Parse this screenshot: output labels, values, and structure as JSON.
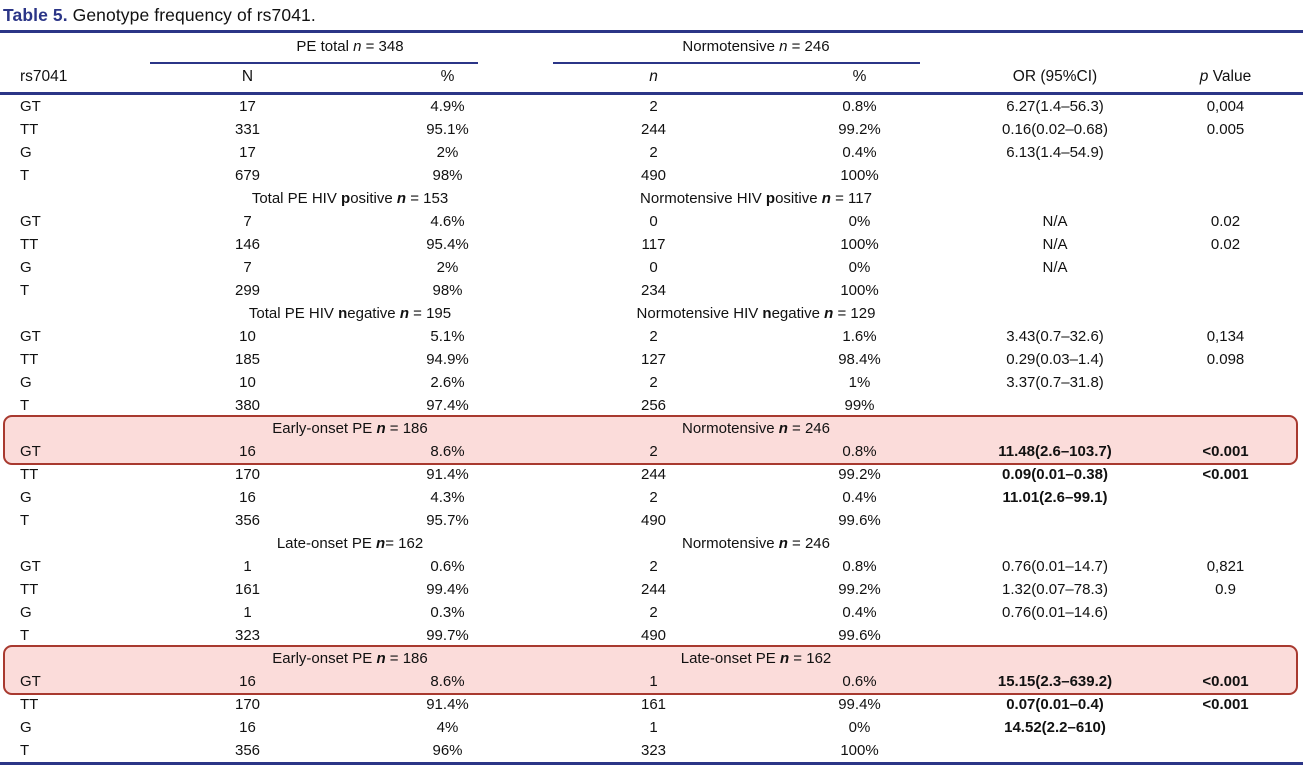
{
  "colors": {
    "navy": "#2b3587",
    "highlight_bg": "#fbdcda",
    "highlight_border": "#a8392f"
  },
  "table": {
    "title_parts": [
      {
        "text": "Table 5.",
        "bold": true,
        "accent": true
      },
      {
        "text": " Genotype frequency of rs7041."
      }
    ],
    "header": {
      "row_label": "rs7041",
      "groups": [
        {
          "parts": [
            {
              "text": "PE total "
            },
            {
              "text": "n",
              "italic": true
            },
            {
              "text": " = 348"
            }
          ]
        },
        {
          "parts": [
            {
              "text": "Normotensive "
            },
            {
              "text": "n",
              "italic": true
            },
            {
              "text": " = 246"
            }
          ]
        }
      ],
      "columns": [
        {
          "name": "col-n-pe",
          "parts": [
            {
              "text": "N"
            }
          ]
        },
        {
          "name": "col-pct-pe",
          "parts": [
            {
              "text": "%"
            }
          ]
        },
        {
          "name": "col-n-control",
          "parts": [
            {
              "text": "n",
              "italic": true
            }
          ]
        },
        {
          "name": "col-pct-control",
          "parts": [
            {
              "text": "%"
            }
          ]
        },
        {
          "name": "col-or",
          "parts": [
            {
              "text": "OR (95%CI)"
            }
          ]
        },
        {
          "name": "col-p-value",
          "parts": [
            {
              "text": "p",
              "italic": true
            },
            {
              "text": " Value"
            }
          ]
        }
      ]
    },
    "blocks": [
      {
        "rows": [
          {
            "cells": [
              "GT",
              "17",
              "4.9%",
              "2",
              "0.8%",
              "6.27(1.4–56.3)",
              "0,004"
            ]
          },
          {
            "cells": [
              "TT",
              "331",
              "95.1%",
              "244",
              "99.2%",
              "0.16(0.02–0.68)",
              "0.005"
            ]
          },
          {
            "cells": [
              "G",
              "17",
              "2%",
              "2",
              "0.4%",
              "6.13(1.4–54.9)",
              ""
            ]
          },
          {
            "cells": [
              "T",
              "679",
              "98%",
              "490",
              "100%",
              "",
              ""
            ]
          }
        ]
      },
      {
        "subheader": {
          "left": [
            {
              "text": "Total PE HIV "
            },
            {
              "text": "p",
              "bold": true
            },
            {
              "text": "ositive "
            },
            {
              "text": "n",
              "bold": true,
              "italic": true
            },
            {
              "text": " = 153"
            }
          ],
          "right": [
            {
              "text": "Normotensive HIV "
            },
            {
              "text": "p",
              "bold": true
            },
            {
              "text": "ositive "
            },
            {
              "text": "n",
              "bold": true,
              "italic": true
            },
            {
              "text": " = 117"
            }
          ]
        },
        "rows": [
          {
            "cells": [
              "GT",
              "7",
              "4.6%",
              "0",
              "0%",
              "N/A",
              "0.02"
            ]
          },
          {
            "cells": [
              "TT",
              "146",
              "95.4%",
              "117",
              "100%",
              "N/A",
              "0.02"
            ]
          },
          {
            "cells": [
              "G",
              "7",
              "2%",
              "0",
              "0%",
              "N/A",
              ""
            ]
          },
          {
            "cells": [
              "T",
              "299",
              "98%",
              "234",
              "100%",
              "",
              ""
            ]
          }
        ]
      },
      {
        "subheader": {
          "left": [
            {
              "text": "Total PE HIV "
            },
            {
              "text": "n",
              "bold": true
            },
            {
              "text": "egative "
            },
            {
              "text": "n",
              "bold": true,
              "italic": true
            },
            {
              "text": " = 195"
            }
          ],
          "right": [
            {
              "text": "Normotensive HIV "
            },
            {
              "text": "n",
              "bold": true
            },
            {
              "text": "egative "
            },
            {
              "text": "n",
              "bold": true,
              "italic": true
            },
            {
              "text": " = 129"
            }
          ]
        },
        "rows": [
          {
            "cells": [
              "GT",
              "10",
              "5.1%",
              "2",
              "1.6%",
              "3.43(0.7–32.6)",
              "0,134"
            ]
          },
          {
            "cells": [
              "TT",
              "185",
              "94.9%",
              "127",
              "98.4%",
              "0.29(0.03–1.4)",
              "0.098"
            ]
          },
          {
            "cells": [
              "G",
              "10",
              "2.6%",
              "2",
              "1%",
              "3.37(0.7–31.8)",
              ""
            ]
          },
          {
            "cells": [
              "T",
              "380",
              "97.4%",
              "256",
              "99%",
              "",
              ""
            ]
          }
        ]
      },
      {
        "highlight_first": true,
        "subheader": {
          "left": [
            {
              "text": "Early-onset PE "
            },
            {
              "text": "n",
              "bold": true,
              "italic": true
            },
            {
              "text": " = 186"
            }
          ],
          "right": [
            {
              "text": "Normotensive "
            },
            {
              "text": "n",
              "bold": true,
              "italic": true
            },
            {
              "text": " = 246"
            }
          ]
        },
        "rows": [
          {
            "cells": [
              "GT",
              "16",
              "8.6%",
              "2",
              "0.8%",
              "11.48(2.6–103.7)",
              "<0.001"
            ],
            "emphasis": true
          },
          {
            "cells": [
              "TT",
              "170",
              "91.4%",
              "244",
              "99.2%",
              "0.09(0.01–0.38)",
              "<0.001"
            ],
            "emphasis": true
          },
          {
            "cells": [
              "G",
              "16",
              "4.3%",
              "2",
              "0.4%",
              "11.01(2.6–99.1)",
              ""
            ],
            "emphasis": true
          },
          {
            "cells": [
              "T",
              "356",
              "95.7%",
              "490",
              "99.6%",
              "",
              ""
            ]
          }
        ]
      },
      {
        "subheader": {
          "left": [
            {
              "text": "Late-onset PE "
            },
            {
              "text": "n",
              "bold": true,
              "italic": true
            },
            {
              "text": "= 162"
            }
          ],
          "right": [
            {
              "text": "Normotensive "
            },
            {
              "text": "n",
              "bold": true,
              "italic": true
            },
            {
              "text": " = 246"
            }
          ]
        },
        "rows": [
          {
            "cells": [
              "GT",
              "1",
              "0.6%",
              "2",
              "0.8%",
              "0.76(0.01–14.7)",
              "0,821"
            ]
          },
          {
            "cells": [
              "TT",
              "161",
              "99.4%",
              "244",
              "99.2%",
              "1.32(0.07–78.3)",
              "0.9"
            ]
          },
          {
            "cells": [
              "G",
              "1",
              "0.3%",
              "2",
              "0.4%",
              "0.76(0.01–14.6)",
              ""
            ]
          },
          {
            "cells": [
              "T",
              "323",
              "99.7%",
              "490",
              "99.6%",
              "",
              ""
            ]
          }
        ]
      },
      {
        "highlight_first": true,
        "subheader": {
          "left": [
            {
              "text": "Early-onset PE "
            },
            {
              "text": "n",
              "bold": true,
              "italic": true
            },
            {
              "text": " = 186"
            }
          ],
          "right": [
            {
              "text": "Late-onset PE "
            },
            {
              "text": "n",
              "bold": true,
              "italic": true
            },
            {
              "text": " = 162"
            }
          ]
        },
        "rows": [
          {
            "cells": [
              "GT",
              "16",
              "8.6%",
              "1",
              "0.6%",
              "15.15(2.3–639.2)",
              "<0.001"
            ],
            "emphasis": true
          },
          {
            "cells": [
              "TT",
              "170",
              "91.4%",
              "161",
              "99.4%",
              "0.07(0.01–0.4)",
              "<0.001"
            ],
            "emphasis": true
          },
          {
            "cells": [
              "G",
              "16",
              "4%",
              "1",
              "0%",
              "14.52(2.2–610)",
              ""
            ],
            "emphasis": true
          },
          {
            "cells": [
              "T",
              "356",
              "96%",
              "323",
              "100%",
              "",
              ""
            ]
          }
        ]
      }
    ]
  }
}
